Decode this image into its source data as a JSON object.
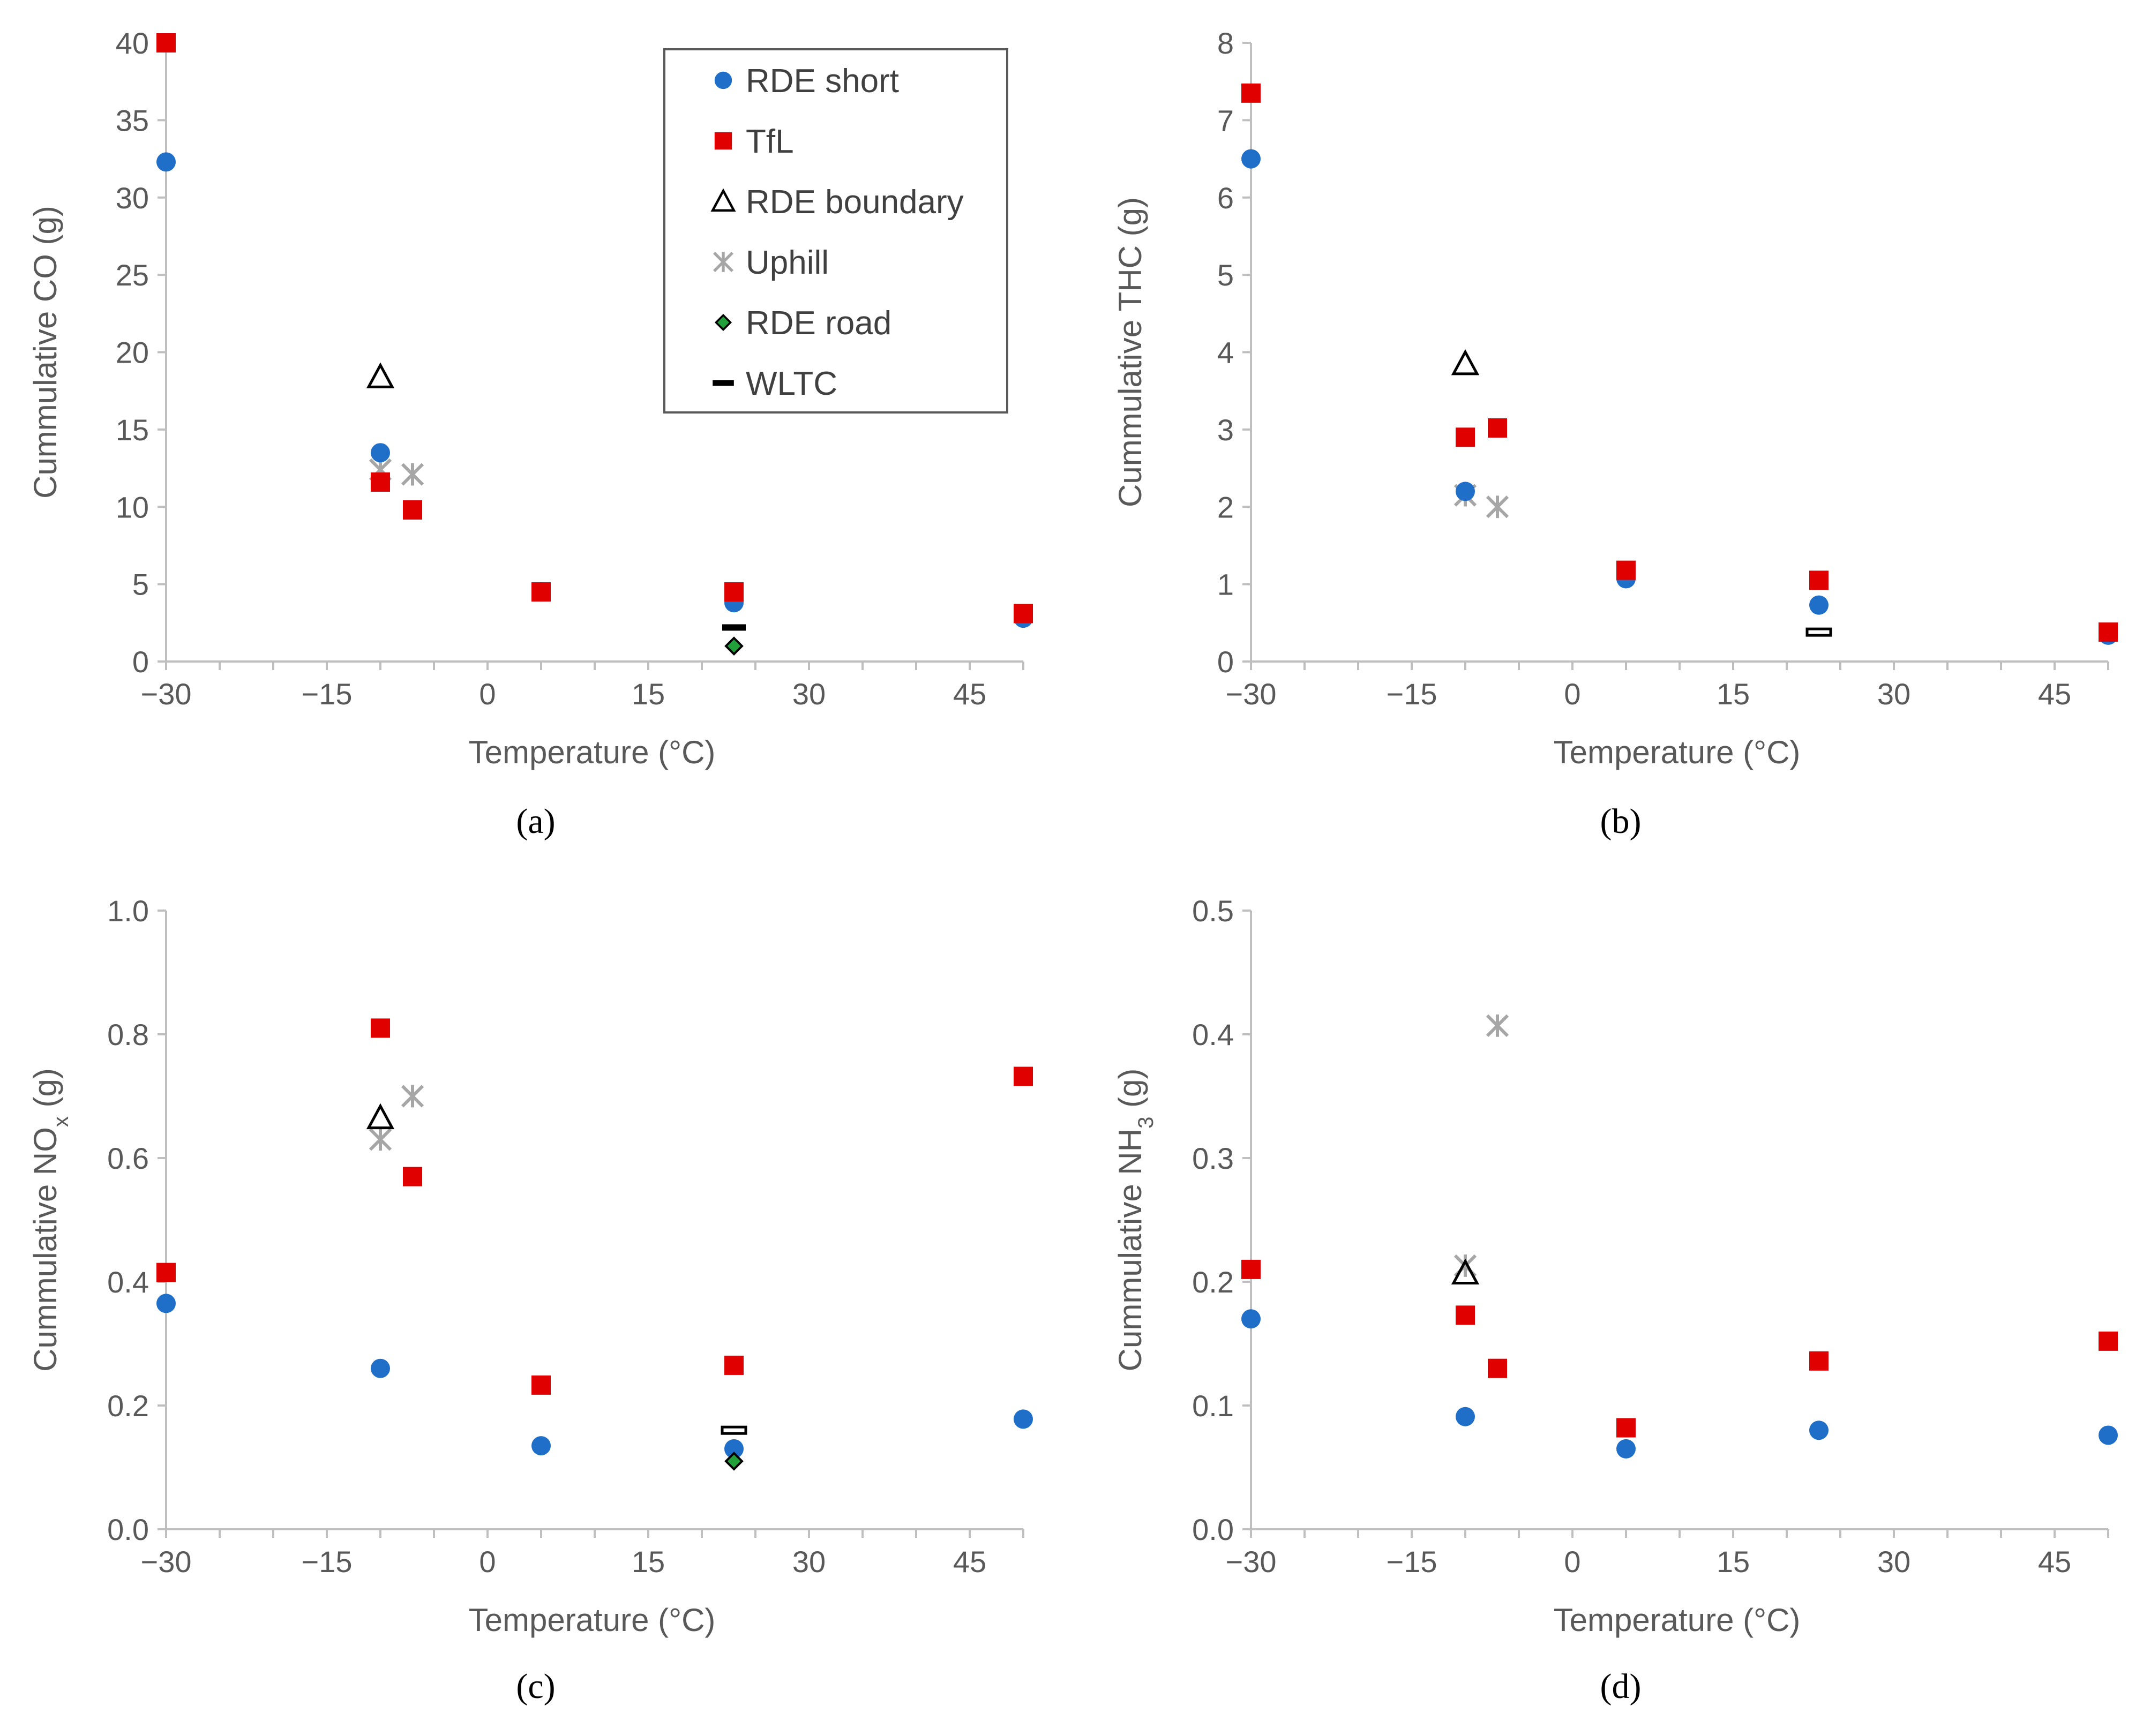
{
  "colors": {
    "rde_short": "#1f6fc8",
    "tfl": "#e00000",
    "rde_boundary": "#000000",
    "uphill": "#a6a6a6",
    "rde_road": "#22a03a",
    "wltc": "#000000",
    "axis": "#bfbfbf",
    "text": "#595959"
  },
  "legend": [
    {
      "key": "rde_short",
      "label": "RDE short",
      "marker": "circle"
    },
    {
      "key": "tfl",
      "label": "TfL",
      "marker": "square"
    },
    {
      "key": "rde_boundary",
      "label": "RDE boundary",
      "marker": "triangle-open"
    },
    {
      "key": "uphill",
      "label": "Uphill",
      "marker": "asterisk"
    },
    {
      "key": "rde_road",
      "label": "RDE road",
      "marker": "diamond"
    },
    {
      "key": "wltc",
      "label": "WLTC",
      "marker": "dash"
    }
  ],
  "chart_data": [
    {
      "type": "scatter",
      "panel_label": "(a)",
      "panel_letter": "a",
      "xlabel": "Temperature (°C)",
      "ylabel": "Cummulative CO (g)",
      "xlim": [
        -30,
        50
      ],
      "ylim": [
        0,
        40
      ],
      "xticks": [
        -30,
        -15,
        0,
        15,
        30,
        45
      ],
      "xtick_labels": [
        "−30",
        "−15",
        "0",
        "15",
        "30",
        "45"
      ],
      "yticks": [
        0,
        5,
        10,
        15,
        20,
        25,
        30,
        35,
        40
      ],
      "ytick_labels": [
        "0",
        "5",
        "10",
        "15",
        "20",
        "25",
        "30",
        "35",
        "40"
      ],
      "series": [
        {
          "key": "rde_short",
          "points": [
            [
              -30,
              32.3
            ],
            [
              -10,
              13.5
            ],
            [
              5,
              4.5
            ],
            [
              23,
              3.8
            ],
            [
              50,
              2.8
            ]
          ]
        },
        {
          "key": "tfl",
          "points": [
            [
              -30,
              40
            ],
            [
              -10,
              11.6
            ],
            [
              -7,
              9.8
            ],
            [
              5,
              4.5
            ],
            [
              23,
              4.5
            ],
            [
              50,
              3.1
            ]
          ]
        },
        {
          "key": "rde_boundary",
          "points": [
            [
              -10,
              18.4
            ]
          ]
        },
        {
          "key": "uphill",
          "points": [
            [
              -10,
              12.4
            ],
            [
              -7,
              12.1
            ]
          ]
        },
        {
          "key": "rde_road",
          "points": [
            [
              23,
              1.0
            ]
          ]
        },
        {
          "key": "wltc",
          "points": [
            [
              23,
              2.2
            ]
          ]
        }
      ]
    },
    {
      "type": "scatter",
      "panel_label": "(b)",
      "panel_letter": "b",
      "xlabel": "Temperature (°C)",
      "ylabel": "Cummulative THC (g)",
      "xlim": [
        -30,
        50
      ],
      "ylim": [
        0,
        8
      ],
      "xticks": [
        -30,
        -15,
        0,
        15,
        30,
        45
      ],
      "xtick_labels": [
        "−30",
        "−15",
        "0",
        "15",
        "30",
        "45"
      ],
      "yticks": [
        0,
        1,
        2,
        3,
        4,
        5,
        6,
        7,
        8
      ],
      "ytick_labels": [
        "0",
        "1",
        "2",
        "3",
        "4",
        "5",
        "6",
        "7",
        "8"
      ],
      "series": [
        {
          "key": "rde_short",
          "points": [
            [
              -30,
              6.5
            ],
            [
              -10,
              2.2
            ],
            [
              5,
              1.07
            ],
            [
              23,
              0.73
            ],
            [
              50,
              0.34
            ]
          ]
        },
        {
          "key": "tfl",
          "points": [
            [
              -30,
              7.35
            ],
            [
              -10,
              2.9
            ],
            [
              -7,
              3.02
            ],
            [
              5,
              1.18
            ],
            [
              23,
              1.05
            ],
            [
              50,
              0.38
            ]
          ]
        },
        {
          "key": "rde_boundary",
          "points": [
            [
              -10,
              3.85
            ]
          ]
        },
        {
          "key": "uphill",
          "points": [
            [
              -10,
              2.15
            ],
            [
              -7,
              2.0
            ]
          ]
        },
        {
          "key": "wltc",
          "points": [
            [
              23,
              0.38
            ]
          ],
          "open": true
        }
      ]
    },
    {
      "type": "scatter",
      "panel_label": "(c)",
      "panel_letter": "c",
      "xlabel": "Temperature (°C)",
      "ylabel": "Cummulative NO",
      "ylabel_sub": "x",
      "ylabel_end": " (g)",
      "xlim": [
        -30,
        50
      ],
      "ylim": [
        0,
        1.0
      ],
      "xticks": [
        -30,
        -15,
        0,
        15,
        30,
        45
      ],
      "xtick_labels": [
        "−30",
        "−15",
        "0",
        "15",
        "30",
        "45"
      ],
      "yticks": [
        0,
        0.2,
        0.4,
        0.6,
        0.8,
        1.0
      ],
      "ytick_labels": [
        "0.0",
        "0.2",
        "0.4",
        "0.6",
        "0.8",
        "1.0"
      ],
      "series": [
        {
          "key": "rde_short",
          "points": [
            [
              -30,
              0.365
            ],
            [
              -10,
              0.26
            ],
            [
              5,
              0.135
            ],
            [
              23,
              0.13
            ],
            [
              50,
              0.178
            ]
          ]
        },
        {
          "key": "tfl",
          "points": [
            [
              -30,
              0.415
            ],
            [
              -10,
              0.81
            ],
            [
              -7,
              0.57
            ],
            [
              5,
              0.233
            ],
            [
              23,
              0.265
            ],
            [
              50,
              0.732
            ]
          ]
        },
        {
          "key": "rde_boundary",
          "points": [
            [
              -10,
              0.665
            ]
          ]
        },
        {
          "key": "uphill",
          "points": [
            [
              -10,
              0.63
            ],
            [
              -7,
              0.7
            ]
          ]
        },
        {
          "key": "rde_road",
          "points": [
            [
              23,
              0.11
            ]
          ]
        },
        {
          "key": "wltc",
          "points": [
            [
              23,
              0.16
            ]
          ],
          "open": true
        }
      ]
    },
    {
      "type": "scatter",
      "panel_label": "(d)",
      "panel_letter": "d",
      "xlabel": "Temperature (°C)",
      "ylabel": "Cummulative NH",
      "ylabel_sub": "3",
      "ylabel_end": " (g)",
      "xlim": [
        -30,
        50
      ],
      "ylim": [
        0,
        0.5
      ],
      "xticks": [
        -30,
        -15,
        0,
        15,
        30,
        45
      ],
      "xtick_labels": [
        "−30",
        "−15",
        "0",
        "15",
        "30",
        "45"
      ],
      "yticks": [
        0,
        0.1,
        0.2,
        0.3,
        0.4,
        0.5
      ],
      "ytick_labels": [
        "0.0",
        "0.1",
        "0.2",
        "0.3",
        "0.4",
        "0.5"
      ],
      "series": [
        {
          "key": "rde_short",
          "points": [
            [
              -30,
              0.17
            ],
            [
              -10,
              0.091
            ],
            [
              5,
              0.065
            ],
            [
              23,
              0.08
            ],
            [
              50,
              0.076
            ]
          ]
        },
        {
          "key": "tfl",
          "points": [
            [
              -30,
              0.21
            ],
            [
              -10,
              0.173
            ],
            [
              -7,
              0.13
            ],
            [
              5,
              0.082
            ],
            [
              23,
              0.136
            ],
            [
              50,
              0.152
            ]
          ]
        },
        {
          "key": "rde_boundary",
          "points": [
            [
              -10,
              0.207
            ]
          ]
        },
        {
          "key": "uphill",
          "points": [
            [
              -10,
              0.213
            ],
            [
              -7,
              0.407
            ]
          ]
        }
      ]
    }
  ]
}
